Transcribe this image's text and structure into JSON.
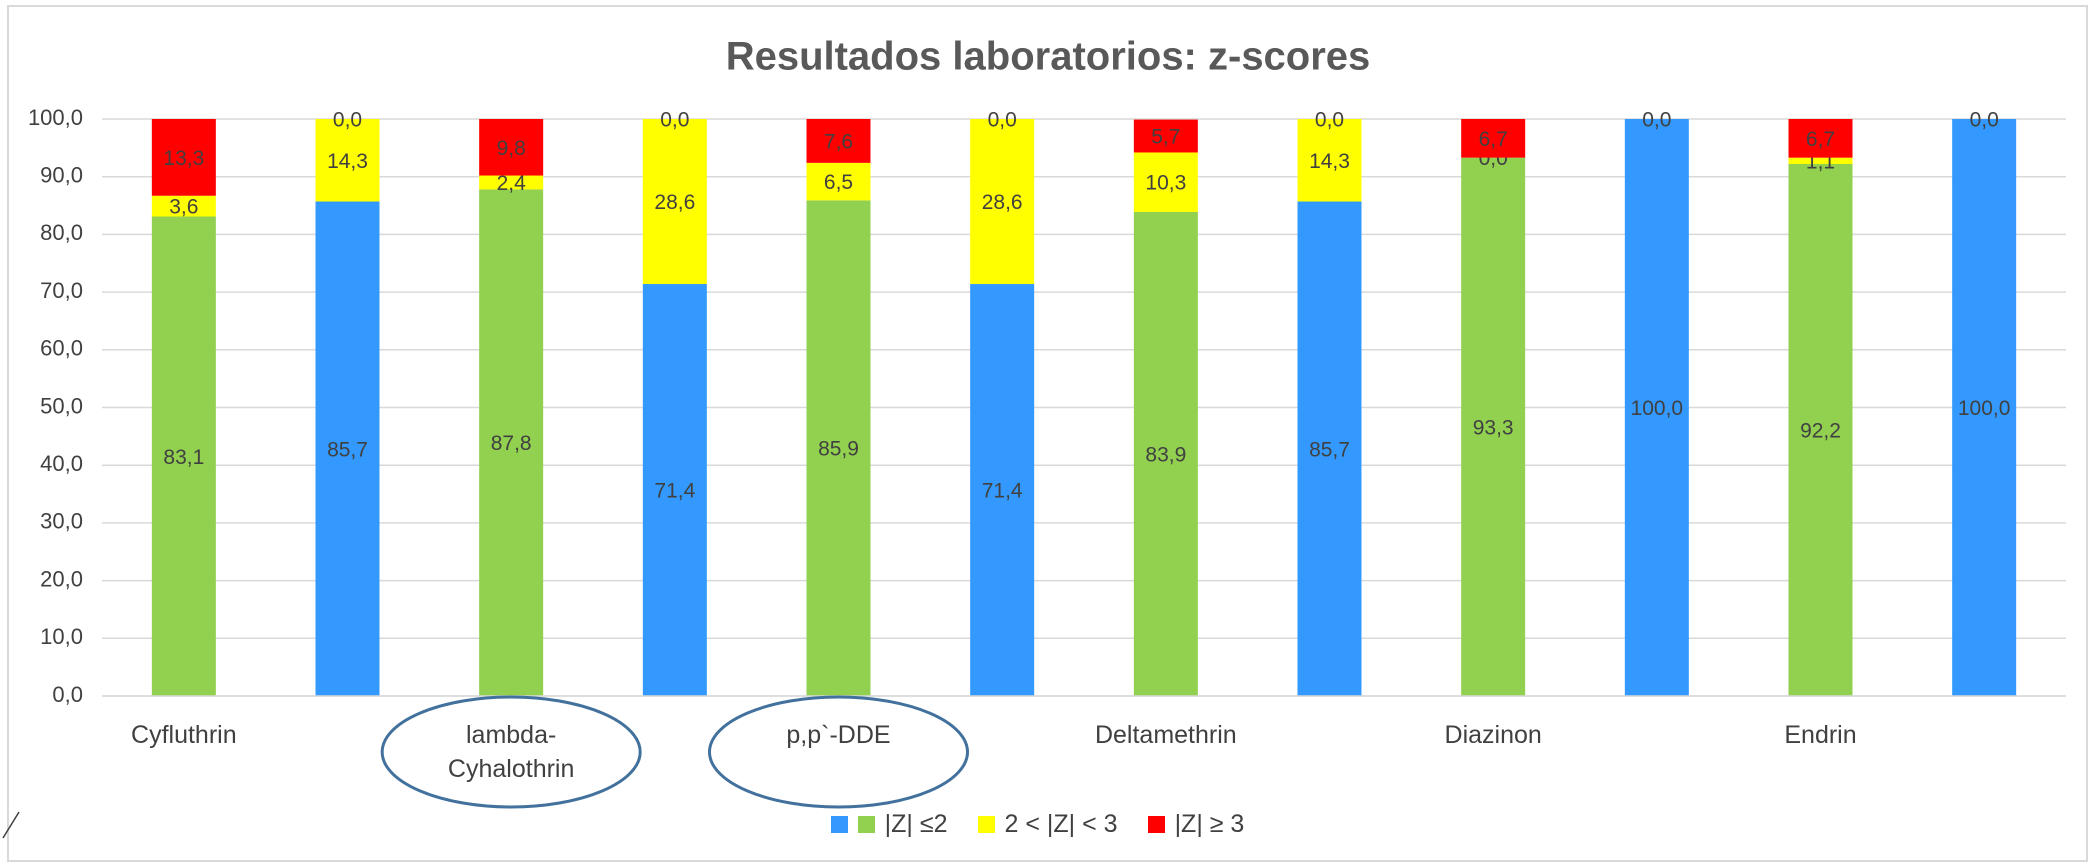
{
  "chart_data": {
    "type": "stacked_bar",
    "title": "Resultados laboratorios: z-scores",
    "categories": [
      "Cyfluthrin",
      null,
      "lambda-Cyhalothrin",
      null,
      "p,p`-DDE",
      null,
      "Deltamethrin",
      null,
      "Diazinon",
      null,
      "Endrin",
      null
    ],
    "series": [
      {
        "name": "|Z| ≤2",
        "color": [
          "#3399ff",
          "#92d050"
        ],
        "values": [
          83.1,
          85.7,
          87.8,
          71.4,
          85.9,
          71.4,
          83.9,
          85.7,
          93.3,
          100.0,
          92.2,
          100.0
        ],
        "value_labels": [
          "83,1",
          "85,7",
          "87,8",
          "71,4",
          "85,9",
          "71,4",
          "83,9",
          "85,7",
          "93,3",
          "100,0",
          "92,2",
          "100,0"
        ]
      },
      {
        "name": "2 < |Z| < 3",
        "color": "#ffff00",
        "values": [
          3.6,
          14.3,
          2.4,
          28.6,
          6.5,
          28.6,
          10.3,
          14.3,
          0.0,
          0.0,
          1.1,
          0.0
        ],
        "value_labels": [
          "3,6",
          "14,3",
          "2,4",
          "28,6",
          "6,5",
          "28,6",
          "10,3",
          "14,3",
          "0,0",
          "0,0",
          "1,1",
          "0,0"
        ]
      },
      {
        "name": "|Z| ≥ 3",
        "color": "#ff0000",
        "values": [
          13.3,
          0.0,
          9.8,
          0.0,
          7.6,
          0.0,
          5.7,
          0.0,
          6.7,
          null,
          6.7,
          null
        ],
        "value_labels": [
          "13,3",
          "0,0",
          "9,8",
          "0,0",
          "7,6",
          "0,0",
          "5,7",
          "0,0",
          "6,7",
          null,
          "6,7",
          null
        ]
      }
    ],
    "ylim": [
      0,
      100
    ],
    "yticks": [
      {
        "value": 0,
        "label": "0,0"
      },
      {
        "value": 10,
        "label": "10,0"
      },
      {
        "value": 20,
        "label": "20,0"
      },
      {
        "value": 30,
        "label": "30,0"
      },
      {
        "value": 40,
        "label": "40,0"
      },
      {
        "value": 50,
        "label": "50,0"
      },
      {
        "value": 60,
        "label": "60,0"
      },
      {
        "value": 70,
        "label": "70,0"
      },
      {
        "value": 80,
        "label": "80,0"
      },
      {
        "value": 90,
        "label": "90,0"
      },
      {
        "value": 100,
        "label": "100,0"
      }
    ],
    "grid": true,
    "legend": "bottom"
  }
}
